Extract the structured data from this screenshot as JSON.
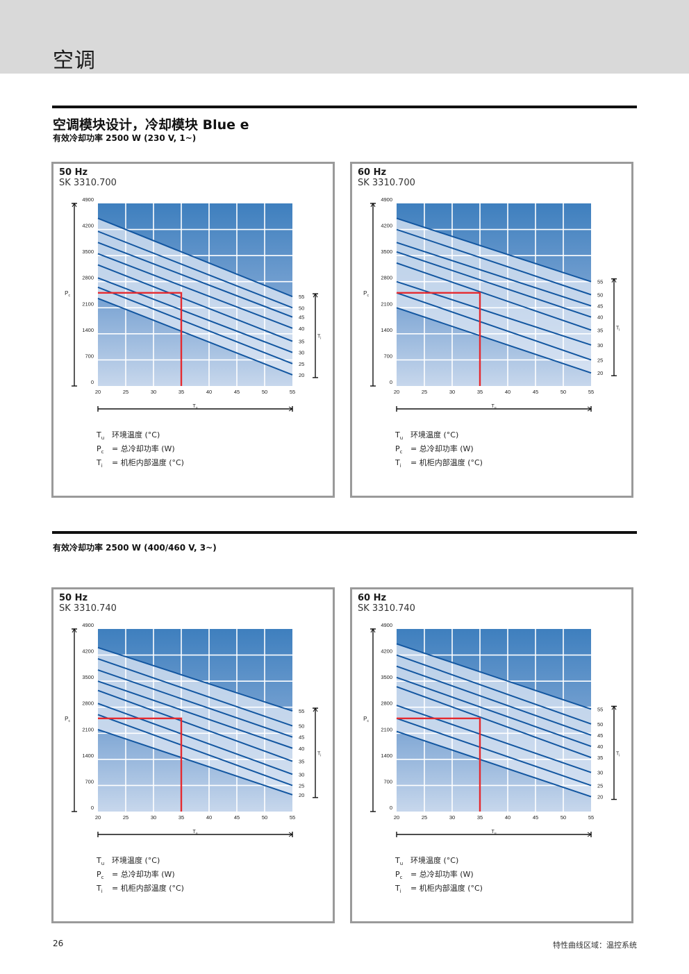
{
  "header": {
    "title": "空调"
  },
  "section": {
    "title": "空调模块设计，冷却模块 Blue e",
    "subtitle_1": "有效冷却功率 2500 W (230 V, 1~)",
    "subtitle_2": "有效冷却功率 2500 W (400/460 V, 3~)"
  },
  "legend": {
    "tu_sym": "T",
    "tu_sub": "u",
    "tu_text": "环境温度 (°C)",
    "pc_sym": "P",
    "pc_sub": "c",
    "pc_text": "= 总冷却功率 (W)",
    "ti_sym": "T",
    "ti_sub": "i",
    "ti_text": "= 机柜内部温度 (°C)"
  },
  "footer": {
    "page_number": "26",
    "text": "特性曲线区域：温控系统"
  },
  "colors": {
    "red_marker": "#e52a2f",
    "line": "#1256a0",
    "band_light": "#dbe6f4"
  },
  "chart_data": [
    {
      "type": "line",
      "frequency": "50 Hz",
      "model": "SK 3310.700",
      "xlabel": "Tu",
      "ylabel": "Pc",
      "ti_axis_label": "Ti",
      "xlim": [
        20,
        55
      ],
      "ylim": [
        0,
        4900
      ],
      "x_ticks": [
        20,
        25,
        30,
        35,
        40,
        45,
        50,
        55
      ],
      "y_ticks": [
        0,
        700,
        1400,
        2100,
        2800,
        3500,
        4200,
        4900
      ],
      "marker": {
        "x": 35,
        "y": 2500
      },
      "series": [
        {
          "name": "55",
          "x": [
            20,
            55
          ],
          "y": [
            4500,
            2400
          ]
        },
        {
          "name": "50",
          "x": [
            20,
            55
          ],
          "y": [
            4150,
            2100
          ]
        },
        {
          "name": "45",
          "x": [
            20,
            55
          ],
          "y": [
            3850,
            1850
          ]
        },
        {
          "name": "40",
          "x": [
            20,
            55
          ],
          "y": [
            3550,
            1550
          ]
        },
        {
          "name": "35",
          "x": [
            20,
            55
          ],
          "y": [
            3250,
            1200
          ]
        },
        {
          "name": "30",
          "x": [
            20,
            55
          ],
          "y": [
            2900,
            900
          ]
        },
        {
          "name": "25",
          "x": [
            20,
            55
          ],
          "y": [
            2650,
            600
          ]
        },
        {
          "name": "20",
          "x": [
            20,
            55
          ],
          "y": [
            2350,
            300
          ]
        }
      ]
    },
    {
      "type": "line",
      "frequency": "60 Hz",
      "model": "SK 3310.700",
      "xlabel": "Tu",
      "ylabel": "Pc",
      "ti_axis_label": "Ti",
      "xlim": [
        20,
        55
      ],
      "ylim": [
        0,
        4900
      ],
      "x_ticks": [
        20,
        25,
        30,
        35,
        40,
        45,
        50,
        55
      ],
      "y_ticks": [
        0,
        700,
        1400,
        2100,
        2800,
        3500,
        4200,
        4900
      ],
      "marker": {
        "x": 35,
        "y": 2500
      },
      "series": [
        {
          "name": "55",
          "x": [
            20,
            55
          ],
          "y": [
            4500,
            2800
          ]
        },
        {
          "name": "50",
          "x": [
            20,
            55
          ],
          "y": [
            4200,
            2450
          ]
        },
        {
          "name": "45",
          "x": [
            20,
            55
          ],
          "y": [
            3850,
            2150
          ]
        },
        {
          "name": "40",
          "x": [
            20,
            55
          ],
          "y": [
            3600,
            1850
          ]
        },
        {
          "name": "35",
          "x": [
            20,
            55
          ],
          "y": [
            3300,
            1500
          ]
        },
        {
          "name": "30",
          "x": [
            20,
            55
          ],
          "y": [
            2800,
            1100
          ]
        },
        {
          "name": "25",
          "x": [
            20,
            55
          ],
          "y": [
            2500,
            700
          ]
        },
        {
          "name": "20",
          "x": [
            20,
            55
          ],
          "y": [
            2100,
            350
          ]
        }
      ]
    },
    {
      "type": "line",
      "frequency": "50 Hz",
      "model": "SK 3310.740",
      "xlabel": "Tu",
      "ylabel": "Pc",
      "ti_axis_label": "Ti",
      "xlim": [
        20,
        55
      ],
      "ylim": [
        0,
        4900
      ],
      "x_ticks": [
        20,
        25,
        30,
        35,
        40,
        45,
        50,
        55
      ],
      "y_ticks": [
        0,
        700,
        1400,
        2100,
        2800,
        3500,
        4200,
        4900
      ],
      "marker": {
        "x": 35,
        "y": 2500
      },
      "series": [
        {
          "name": "55",
          "x": [
            20,
            55
          ],
          "y": [
            4400,
            2700
          ]
        },
        {
          "name": "50",
          "x": [
            20,
            55
          ],
          "y": [
            4100,
            2300
          ]
        },
        {
          "name": "45",
          "x": [
            20,
            55
          ],
          "y": [
            3800,
            2000
          ]
        },
        {
          "name": "40",
          "x": [
            20,
            55
          ],
          "y": [
            3500,
            1700
          ]
        },
        {
          "name": "35",
          "x": [
            20,
            55
          ],
          "y": [
            3250,
            1350
          ]
        },
        {
          "name": "30",
          "x": [
            20,
            55
          ],
          "y": [
            2900,
            1000
          ]
        },
        {
          "name": "25",
          "x": [
            20,
            55
          ],
          "y": [
            2600,
            700
          ]
        },
        {
          "name": "20",
          "x": [
            20,
            55
          ],
          "y": [
            2200,
            450
          ]
        }
      ]
    },
    {
      "type": "line",
      "frequency": "60 Hz",
      "model": "SK 3310.740",
      "xlabel": "Tu",
      "ylabel": "Pc",
      "ti_axis_label": "Ti",
      "xlim": [
        20,
        55
      ],
      "ylim": [
        0,
        4900
      ],
      "x_ticks": [
        20,
        25,
        30,
        35,
        40,
        45,
        50,
        55
      ],
      "y_ticks": [
        0,
        700,
        1400,
        2100,
        2800,
        3500,
        4200,
        4900
      ],
      "marker": {
        "x": 35,
        "y": 2500
      },
      "series": [
        {
          "name": "55",
          "x": [
            20,
            55
          ],
          "y": [
            4500,
            2750
          ]
        },
        {
          "name": "50",
          "x": [
            20,
            55
          ],
          "y": [
            4200,
            2350
          ]
        },
        {
          "name": "45",
          "x": [
            20,
            55
          ],
          "y": [
            3900,
            2050
          ]
        },
        {
          "name": "40",
          "x": [
            20,
            55
          ],
          "y": [
            3600,
            1750
          ]
        },
        {
          "name": "35",
          "x": [
            20,
            55
          ],
          "y": [
            3350,
            1450
          ]
        },
        {
          "name": "30",
          "x": [
            20,
            55
          ],
          "y": [
            2850,
            1050
          ]
        },
        {
          "name": "25",
          "x": [
            20,
            55
          ],
          "y": [
            2500,
            700
          ]
        },
        {
          "name": "20",
          "x": [
            20,
            55
          ],
          "y": [
            2150,
            400
          ]
        }
      ]
    }
  ]
}
